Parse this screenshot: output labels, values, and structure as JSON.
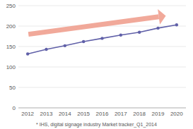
{
  "chart_data": {
    "type": "line",
    "x": [
      2012,
      2013,
      2014,
      2015,
      2016,
      2017,
      2018,
      2019,
      2020
    ],
    "values": [
      132,
      143,
      152,
      162,
      170,
      178,
      185,
      195,
      203
    ],
    "color": "#6060a8",
    "marker": "circle",
    "xlim": [
      2011.5,
      2020.5
    ],
    "xticks": [
      2012,
      2013,
      2014,
      2015,
      2016,
      2017,
      2018,
      2019,
      2020
    ],
    "ylim": [
      0,
      250
    ],
    "yticks": [
      0,
      50,
      100,
      150,
      200,
      250
    ],
    "grid": true,
    "footnote": "* IHS, digital signage industry Market tracker_Q1_2014"
  }
}
